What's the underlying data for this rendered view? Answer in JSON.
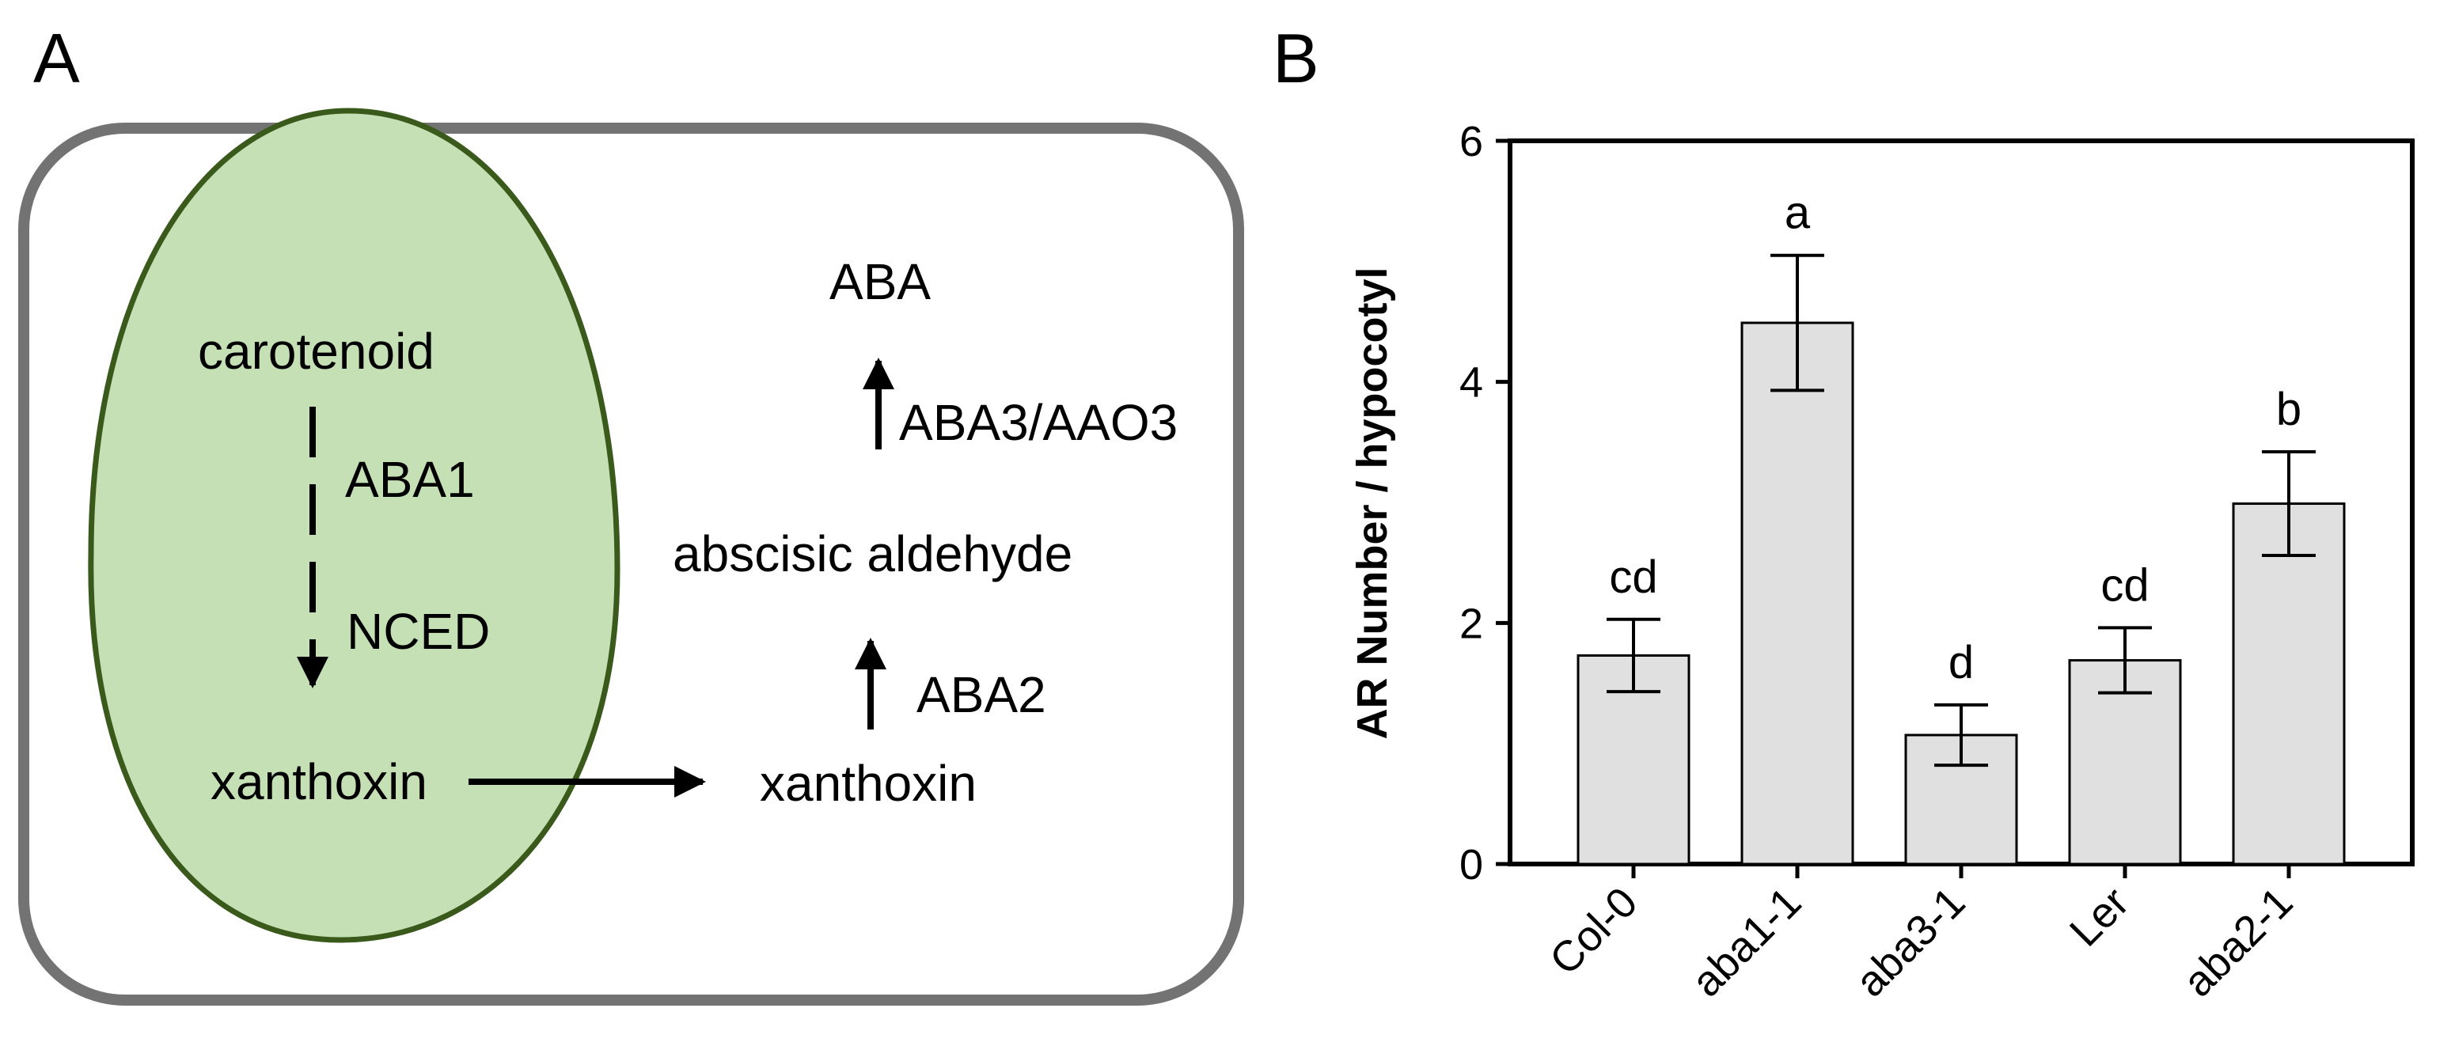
{
  "panel_a": {
    "label": "A",
    "chloroplast": {
      "start": "carotenoid",
      "enzyme_1": "ABA1",
      "enzyme_2": "NCED",
      "product": "xanthoxin"
    },
    "cytosol": {
      "substrate": "xanthoxin",
      "enzyme_aba2": "ABA2",
      "intermediate": "abscisic aldehyde",
      "enzyme_aba3": "ABA3/AAO3",
      "final": "ABA"
    },
    "colors": {
      "cell_border": "#737373",
      "chloroplast_fill": "#c5e0b4",
      "chloroplast_border": "#3a5a1c",
      "arrow": "#000000"
    }
  },
  "panel_b": {
    "label": "B"
  },
  "chart_data": {
    "type": "bar",
    "categories": [
      "Col-0",
      "aba1-1",
      "aba3-1",
      "Ler",
      "aba2-1"
    ],
    "values": [
      1.73,
      4.49,
      1.07,
      1.69,
      2.99
    ],
    "error": [
      0.3,
      0.56,
      0.25,
      0.27,
      0.43
    ],
    "significance": [
      "cd",
      "a",
      "d",
      "cd",
      "b"
    ],
    "ylabel": "AR Number / hypocotyl",
    "xlabel": "",
    "ylim": [
      0,
      6
    ],
    "yticks": [
      0,
      2,
      4,
      6
    ],
    "bar_color": "#e0e0e0",
    "grid": false,
    "legend": "none"
  }
}
